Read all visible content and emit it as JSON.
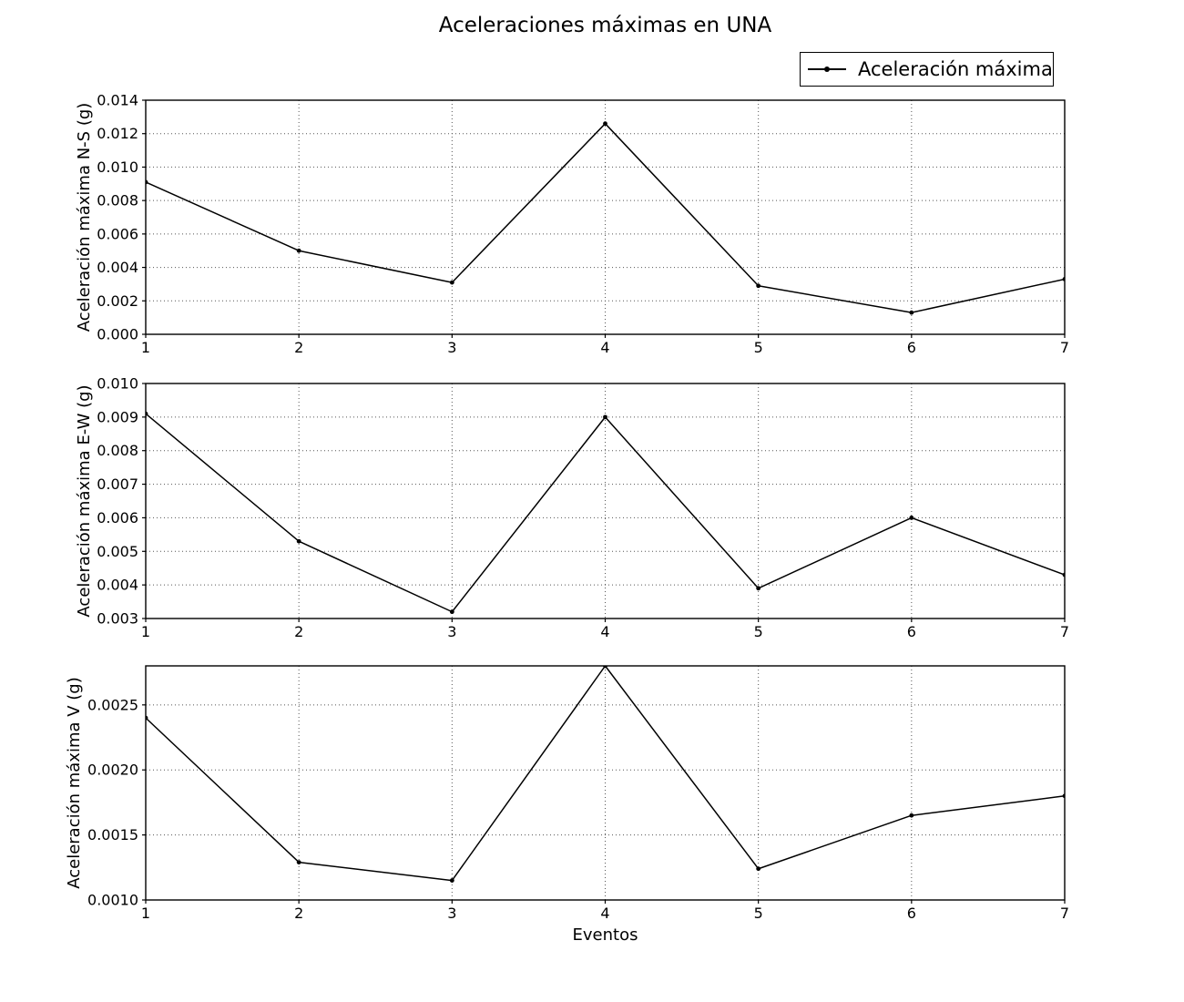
{
  "figure": {
    "title": "Aceleraciones máximas en UNA",
    "xlabel": "Eventos",
    "legend_label": "Aceleración máxima",
    "colors": {
      "line": "#000000",
      "grid": "#555555",
      "background": "#ffffff",
      "text": "#000000"
    }
  },
  "chart_data": [
    {
      "type": "line",
      "id": "ns",
      "title": "",
      "ylabel": "Aceleración máxima N-S (g)",
      "x": [
        1,
        2,
        3,
        4,
        5,
        6,
        7
      ],
      "xlim": [
        1,
        7
      ],
      "xticklabels": [
        "1",
        "2",
        "3",
        "4",
        "5",
        "6",
        "7"
      ],
      "ylim": [
        0.0,
        0.014
      ],
      "yticks": [
        0.0,
        0.002,
        0.004,
        0.006,
        0.008,
        0.01,
        0.012,
        0.014
      ],
      "yticklabels": [
        "0.000",
        "0.002",
        "0.004",
        "0.006",
        "0.008",
        "0.010",
        "0.012",
        "0.014"
      ],
      "grid": true,
      "legend_position": "outside-upper-right",
      "series": [
        {
          "name": "Aceleración máxima",
          "marker": "point",
          "color": "#000000",
          "values": [
            0.0091,
            0.005,
            0.0031,
            0.0126,
            0.0029,
            0.0013,
            0.0033
          ]
        }
      ]
    },
    {
      "type": "line",
      "id": "ew",
      "title": "",
      "ylabel": "Aceleración máxima E-W (g)",
      "x": [
        1,
        2,
        3,
        4,
        5,
        6,
        7
      ],
      "xlim": [
        1,
        7
      ],
      "xticklabels": [
        "1",
        "2",
        "3",
        "4",
        "5",
        "6",
        "7"
      ],
      "ylim": [
        0.003,
        0.01
      ],
      "yticks": [
        0.003,
        0.004,
        0.005,
        0.006,
        0.007,
        0.008,
        0.009,
        0.01
      ],
      "yticklabels": [
        "0.003",
        "0.004",
        "0.005",
        "0.006",
        "0.007",
        "0.008",
        "0.009",
        "0.010"
      ],
      "grid": true,
      "series": [
        {
          "name": "Aceleración máxima",
          "marker": "point",
          "color": "#000000",
          "values": [
            0.0091,
            0.0053,
            0.0032,
            0.009,
            0.0039,
            0.006,
            0.0043
          ]
        }
      ]
    },
    {
      "type": "line",
      "id": "v",
      "title": "",
      "ylabel": "Aceleración máxima V (g)",
      "x": [
        1,
        2,
        3,
        4,
        5,
        6,
        7
      ],
      "xlim": [
        1,
        7
      ],
      "xticklabels": [
        "1",
        "2",
        "3",
        "4",
        "5",
        "6",
        "7"
      ],
      "ylim": [
        0.001,
        0.0028
      ],
      "yticks": [
        0.001,
        0.0015,
        0.002,
        0.0025
      ],
      "yticklabels": [
        "0.0010",
        "0.0015",
        "0.0020",
        "0.0025"
      ],
      "grid": true,
      "series": [
        {
          "name": "Aceleración máxima",
          "marker": "point",
          "color": "#000000",
          "values": [
            0.0024,
            0.00129,
            0.00115,
            0.0028,
            0.00124,
            0.00165,
            0.0018
          ]
        }
      ]
    }
  ]
}
